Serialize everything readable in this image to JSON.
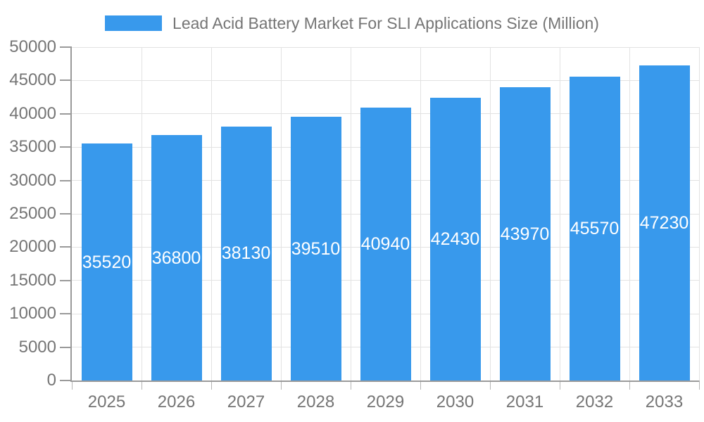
{
  "chart_data": {
    "type": "bar",
    "title": "Lead Acid Battery Market For SLI Applications Size (Million)",
    "legend_position": "top",
    "categories": [
      "2025",
      "2026",
      "2027",
      "2028",
      "2029",
      "2030",
      "2031",
      "2032",
      "2033"
    ],
    "values": [
      35520,
      36800,
      38130,
      39510,
      40940,
      42430,
      43970,
      45570,
      47230
    ],
    "xlabel": "",
    "ylabel": "",
    "ylim": [
      0,
      50000
    ],
    "ytick_step": 5000,
    "ytick_labels": [
      "0",
      "5000",
      "10000",
      "15000",
      "20000",
      "25000",
      "30000",
      "35000",
      "40000",
      "45000",
      "50000"
    ],
    "grid": true,
    "colors": {
      "bar": "#3899ec",
      "bar_label": "#ffffff",
      "axis_text": "#757575",
      "axis_line": "#9a9a9a",
      "gridline": "#e2e2e2",
      "tick": "#b5b5b5",
      "background": "#ffffff"
    }
  }
}
